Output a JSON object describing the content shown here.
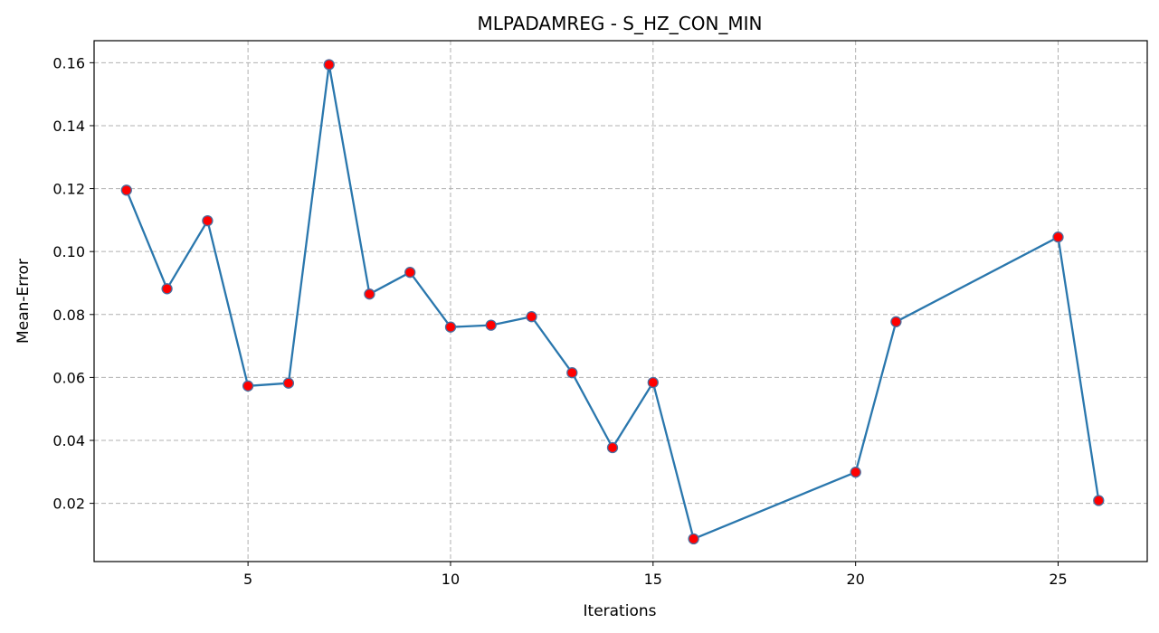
{
  "chart_data": {
    "type": "line",
    "title": "MLPADAMREG - S_HZ_CON_MIN",
    "xlabel": "Iterations",
    "ylabel": "Mean-Error",
    "xlim": [
      1.2,
      27.2
    ],
    "ylim": [
      0.0015,
      0.167
    ],
    "xticks": [
      5,
      10,
      15,
      20,
      25
    ],
    "yticks": [
      0.02,
      0.04,
      0.06,
      0.08,
      0.1,
      0.12,
      0.14,
      0.16
    ],
    "ytick_labels": [
      "0.02",
      "0.04",
      "0.06",
      "0.08",
      "0.10",
      "0.12",
      "0.14",
      "0.16"
    ],
    "grid": true,
    "series": [
      {
        "line_color": "#2a77ad",
        "marker_color": "#ff0000",
        "marker_edge_color": "#4a6fa0",
        "points": [
          {
            "x": 2,
            "y": 0.1195
          },
          {
            "x": 3,
            "y": 0.0882
          },
          {
            "x": 4,
            "y": 0.1098
          },
          {
            "x": 5,
            "y": 0.0573
          },
          {
            "x": 6,
            "y": 0.0582
          },
          {
            "x": 7,
            "y": 0.1594
          },
          {
            "x": 8,
            "y": 0.0865
          },
          {
            "x": 9,
            "y": 0.0934
          },
          {
            "x": 10,
            "y": 0.076
          },
          {
            "x": 11,
            "y": 0.0766
          },
          {
            "x": 12,
            "y": 0.0793
          },
          {
            "x": 13,
            "y": 0.0615
          },
          {
            "x": 14,
            "y": 0.0377
          },
          {
            "x": 15,
            "y": 0.0584
          },
          {
            "x": 16,
            "y": 0.0087
          },
          {
            "x": 20,
            "y": 0.0299
          },
          {
            "x": 21,
            "y": 0.0777
          },
          {
            "x": 25,
            "y": 0.1046
          },
          {
            "x": 26,
            "y": 0.0209
          }
        ]
      }
    ]
  }
}
